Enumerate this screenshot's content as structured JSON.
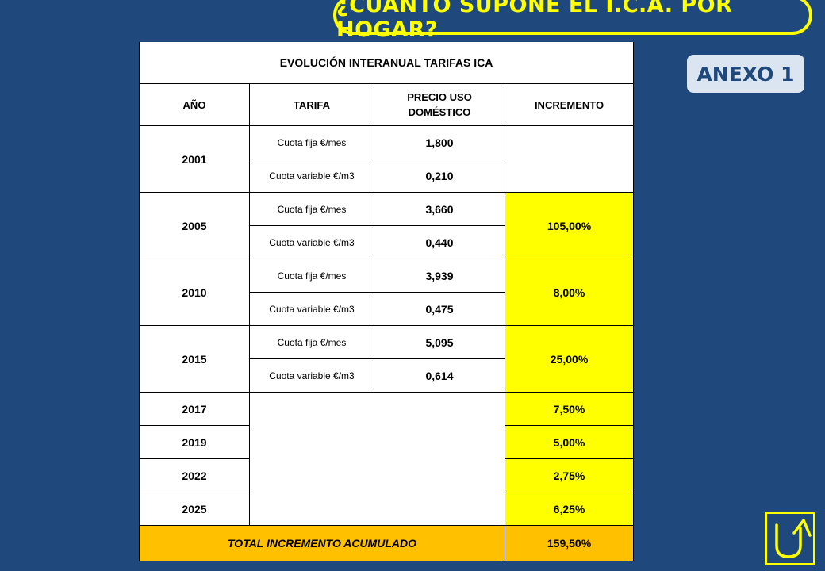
{
  "title": "¿CUÁNTO SUPONE EL I.C.A. POR HOGAR?",
  "annex_label": "ANEXO 1",
  "table": {
    "title": "EVOLUCIÓN INTERANUAL TARIFAS ICA",
    "headers": {
      "year": "AÑO",
      "tariff": "TARIFA",
      "price_line1": "PRECIO USO",
      "price_line2": "DOMÉSTICO",
      "increment": "INCREMENTO"
    },
    "fixed_label": "Cuota fija €/mes",
    "variable_label": "Cuota variable €/m3",
    "groups": [
      {
        "year": "2001",
        "fixed": "1,800",
        "variable": "0,210",
        "increment": ""
      },
      {
        "year": "2005",
        "fixed": "3,660",
        "variable": "0,440",
        "increment": "105,00%"
      },
      {
        "year": "2010",
        "fixed": "3,939",
        "variable": "0,475",
        "increment": "8,00%"
      },
      {
        "year": "2015",
        "fixed": "5,095",
        "variable": "0,614",
        "increment": "25,00%"
      }
    ],
    "simple_rows": [
      {
        "year": "2017",
        "increment": "7,50%"
      },
      {
        "year": "2019",
        "increment": "5,00%"
      },
      {
        "year": "2022",
        "increment": "2,75%"
      },
      {
        "year": "2025",
        "increment": "6,25%"
      }
    ],
    "total_label": "TOTAL INCREMENTO ACUMULADO",
    "total_value": "159,50%"
  },
  "colors": {
    "background": "#1f497d",
    "accent": "#ffff00",
    "total": "#ffc000"
  },
  "icons": {
    "return_button": "return-arrow-icon"
  }
}
